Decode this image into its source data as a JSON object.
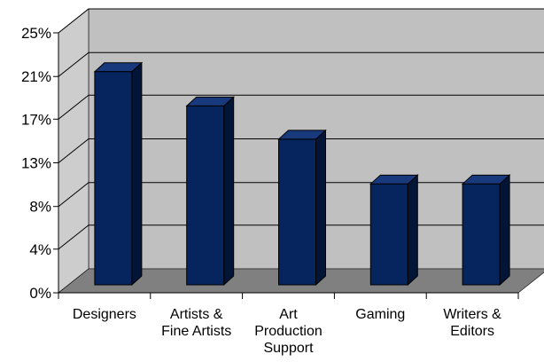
{
  "chart_data": {
    "type": "bar",
    "categories": [
      [
        "Designers"
      ],
      [
        "Artists &",
        "Fine Artists"
      ],
      [
        "Art",
        "Production",
        "Support"
      ],
      [
        "Gaming"
      ],
      [
        "Writers &",
        "Editors"
      ]
    ],
    "values": [
      0.205,
      0.172,
      0.14,
      0.097,
      0.097
    ],
    "y_ticks": [
      {
        "label": "0%",
        "value": 0.0
      },
      {
        "label": "4%",
        "value": 0.042
      },
      {
        "label": "8%",
        "value": 0.083
      },
      {
        "label": "13%",
        "value": 0.125
      },
      {
        "label": "17%",
        "value": 0.167
      },
      {
        "label": "21%",
        "value": 0.208
      },
      {
        "label": "25%",
        "value": 0.25
      }
    ],
    "ylim": [
      0,
      0.25
    ],
    "grid": true,
    "legend": "none",
    "title": "",
    "xlabel": "",
    "ylabel": "",
    "colors": {
      "bar_front": "#06245e",
      "bar_side": "#031537",
      "bar_top": "#183a7c",
      "back_wall": "#c0c0c0",
      "side_wall": "#cdcdcd",
      "floor": "#808080",
      "gridline": "#000000",
      "axis": "#000000"
    }
  }
}
